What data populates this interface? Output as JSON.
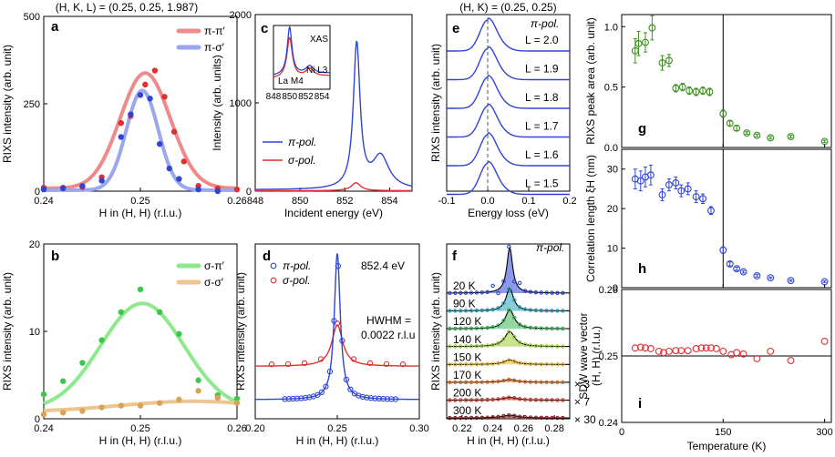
{
  "colors": {
    "pi_pi": "#f08a8a",
    "pi_sigma": "#9aa6ee",
    "sigma_pi": "#8ee98e",
    "sigma_sigma": "#eec58e",
    "red": "#e03030",
    "blue": "#2f45d6",
    "green": "#3a8f1d",
    "grey": "#888888"
  },
  "chart_data": [
    {
      "id": "a",
      "type": "scatter",
      "panel_label": "a",
      "title": "(H, K, L) = (0.25, 0.25, 1.987)",
      "xlabel": "H in (H, H) (r.l.u.)",
      "ylabel": "RIXS intensity (arb. unit)",
      "xlim": [
        0.24,
        0.26
      ],
      "ylim": [
        0,
        500
      ],
      "xticks": [
        "0.24",
        "0.25",
        "0.26"
      ],
      "yticks": [
        "0",
        "250",
        "500"
      ],
      "legend": [
        "π-π′",
        "π-σ′"
      ],
      "series": [
        {
          "name": "π-π′",
          "color": "pi_pi",
          "points": [
            [
              0.24,
              10
            ],
            [
              0.242,
              10
            ],
            [
              0.244,
              12
            ],
            [
              0.246,
              40
            ],
            [
              0.248,
              195
            ],
            [
              0.249,
              215
            ],
            [
              0.2505,
              305
            ],
            [
              0.2515,
              345
            ],
            [
              0.2525,
              270
            ],
            [
              0.2535,
              170
            ],
            [
              0.2545,
              85
            ],
            [
              0.256,
              15
            ],
            [
              0.258,
              8
            ],
            [
              0.26,
              5
            ]
          ],
          "fit": {
            "amp": 330,
            "center": 0.2505,
            "sigma": 0.0026,
            "base": 8
          }
        },
        {
          "name": "π-σ′",
          "color": "pi_sigma",
          "points": [
            [
              0.24,
              5
            ],
            [
              0.242,
              8
            ],
            [
              0.244,
              15
            ],
            [
              0.246,
              30
            ],
            [
              0.248,
              155
            ],
            [
              0.249,
              220
            ],
            [
              0.25,
              275
            ],
            [
              0.251,
              265
            ],
            [
              0.252,
              135
            ],
            [
              0.253,
              65
            ],
            [
              0.254,
              35
            ],
            [
              0.256,
              5
            ],
            [
              0.258,
              0
            ]
          ],
          "fit": {
            "amp": 285,
            "center": 0.2502,
            "sigma": 0.00165,
            "base": 3
          }
        }
      ]
    },
    {
      "id": "b",
      "type": "scatter",
      "panel_label": "b",
      "xlabel": "H in (H, H) (r.l.u.)",
      "ylabel": "RIXS intensity (arb. unit)",
      "xlim": [
        0.24,
        0.26
      ],
      "ylim": [
        0,
        20
      ],
      "xticks": [
        "0.24",
        "0.25",
        "0.26"
      ],
      "yticks": [
        "0",
        "10",
        "20"
      ],
      "legend": [
        "σ-π′",
        "σ-σ′"
      ],
      "series": [
        {
          "name": "σ-π′",
          "color": "sigma_pi",
          "points": [
            [
              0.24,
              2.8
            ],
            [
              0.242,
              4.3
            ],
            [
              0.244,
              6.4
            ],
            [
              0.246,
              9
            ],
            [
              0.248,
              12.2
            ],
            [
              0.25,
              14.8
            ],
            [
              0.252,
              12.2
            ],
            [
              0.254,
              9.7
            ],
            [
              0.256,
              4.4
            ],
            [
              0.258,
              2.7
            ],
            [
              0.26,
              2.3
            ]
          ],
          "fit": {
            "amp": 12.2,
            "center": 0.2502,
            "sigma": 0.0043,
            "base": 1
          }
        },
        {
          "name": "σ-σ′",
          "color": "sigma_sigma",
          "points": [
            [
              0.24,
              0.5
            ],
            [
              0.242,
              0.7
            ],
            [
              0.244,
              0.9
            ],
            [
              0.246,
              1.3
            ],
            [
              0.248,
              1.5
            ],
            [
              0.25,
              1.5
            ],
            [
              0.252,
              1.8
            ],
            [
              0.254,
              2.2
            ],
            [
              0.256,
              3.2
            ],
            [
              0.258,
              2.4
            ],
            [
              0.26,
              1.8
            ]
          ],
          "fit": {
            "amp": 1.2,
            "center": 0.2555,
            "sigma": 0.0075,
            "base": 0.8
          }
        }
      ]
    },
    {
      "id": "c",
      "type": "line",
      "panel_label": "c",
      "xlabel": "Incident energy (eV)",
      "ylabel": "Intensity (arb. units)",
      "xlim": [
        848,
        855
      ],
      "ylim": [
        0,
        2000
      ],
      "xticks": [
        "848",
        "850",
        "852",
        "854"
      ],
      "yticks": [
        "0",
        "1000",
        "2000"
      ],
      "legend": [
        "π-pol.",
        "σ-pol."
      ],
      "series": [
        {
          "name": "π-pol.",
          "color": "blue",
          "peaks": [
            [
              852.53,
              1630,
              0.18
            ],
            [
              853.6,
              370,
              0.45
            ]
          ],
          "base": 15
        },
        {
          "name": "σ-pol.",
          "color": "red",
          "peaks": [
            [
              852.5,
              90,
              0.25
            ]
          ],
          "base": 5
        }
      ],
      "inset": {
        "label": "XAS",
        "xlim": [
          848,
          855
        ],
        "xticks": [
          "848",
          "850",
          "852",
          "854"
        ],
        "annotations": [
          "La M4",
          "Ni L3"
        ]
      }
    },
    {
      "id": "d",
      "type": "scatter",
      "panel_label": "d",
      "xlabel": "H in (H, H) (r.l.u.)",
      "ylabel": "RIXS intensity (arb. unit)",
      "xlim": [
        0.2,
        0.3
      ],
      "xticks": [
        "0.20",
        "0.25",
        "0.30"
      ],
      "energy_label": "852.4 eV",
      "hwhm_label": [
        "HWHM =",
        "0.0022 r.l.u"
      ],
      "legend": [
        "π-pol.",
        "σ-pol."
      ],
      "series": [
        {
          "name": "π-pol.",
          "color": "blue",
          "hwhm": 0.0022,
          "center": 0.25
        },
        {
          "name": "σ-pol.",
          "color": "red",
          "hwhm": 0.004,
          "center": 0.25
        }
      ]
    },
    {
      "id": "e",
      "type": "line",
      "panel_label": "e",
      "title": "(H, K) = (0.25, 0.25)",
      "pol_label": "π-pol.",
      "xlabel": "Energy loss (eV)",
      "ylabel": "RIXS intensity (arb. unit)",
      "xlim": [
        -0.1,
        0.2
      ],
      "xticks": [
        "-0.1",
        "0.0",
        "0.1",
        "0.2"
      ],
      "series": [
        "L = 2.0",
        "L = 1.9",
        "L = 1.8",
        "L = 1.7",
        "L = 1.6",
        "L = 1.5"
      ]
    },
    {
      "id": "f",
      "type": "line",
      "panel_label": "f",
      "pol_label": "π-pol.",
      "xlabel": "H in (H, H) (r.l.u.)",
      "ylabel": "RIXS intensity (arb. unit)",
      "xlim": [
        0.21,
        0.29
      ],
      "xticks": [
        "0.22",
        "0.24",
        "0.26",
        "0.28"
      ],
      "series": [
        {
          "name": "20 K",
          "amp": 1.0,
          "fill": "#2f45d6"
        },
        {
          "name": "90 K",
          "amp": 0.5,
          "fill": "#2aa3b8"
        },
        {
          "name": "120 K",
          "amp": 0.42,
          "fill": "#3cb45a"
        },
        {
          "name": "140 K",
          "amp": 0.33,
          "fill": "#9ccc36"
        },
        {
          "name": "150 K",
          "amp": 0.1,
          "fill": "#e7b42a"
        },
        {
          "name": "170 K",
          "amp": 0.05,
          "fill": "#e07a2a"
        },
        {
          "name": "200 K",
          "amp": 0.04,
          "fill": "#d03c2a"
        },
        {
          "name": "300 K",
          "amp": 0.03,
          "fill": "#8a1a1a"
        }
      ],
      "multipliers": [
        "× 3",
        "× 7",
        "× 30"
      ]
    },
    {
      "id": "g",
      "type": "scatter",
      "panel_label": "g",
      "ylabel": "RIXS peak area (arb. unit)",
      "xlim": [
        0,
        310
      ],
      "ylim": [
        0,
        1.1
      ],
      "yticks": [
        "0.0",
        "0.5",
        "1.0"
      ],
      "vline": 150,
      "color": "green",
      "points": [
        [
          20,
          0.8,
          0.1
        ],
        [
          25,
          0.86,
          0.1
        ],
        [
          35,
          0.87,
          0.08
        ],
        [
          45,
          0.99,
          0.1
        ],
        [
          60,
          0.7,
          0.06
        ],
        [
          70,
          0.72,
          0.05
        ],
        [
          80,
          0.49,
          0.03
        ],
        [
          90,
          0.5,
          0.03
        ],
        [
          100,
          0.47,
          0.03
        ],
        [
          110,
          0.46,
          0.03
        ],
        [
          120,
          0.47,
          0.03
        ],
        [
          130,
          0.46,
          0.03
        ],
        [
          150,
          0.28,
          0.03
        ],
        [
          160,
          0.2,
          0.02
        ],
        [
          170,
          0.16,
          0.02
        ],
        [
          185,
          0.12,
          0.01
        ],
        [
          200,
          0.1,
          0.01
        ],
        [
          220,
          0.08,
          0.01
        ],
        [
          250,
          0.09,
          0.01
        ],
        [
          300,
          0.05,
          0.01
        ]
      ]
    },
    {
      "id": "h",
      "type": "scatter",
      "panel_label": "h",
      "ylabel": "Correlation length ξH (nm)",
      "xlim": [
        0,
        310
      ],
      "ylim": [
        0,
        35
      ],
      "yticks": [
        "0",
        "10",
        "20",
        "30"
      ],
      "vline": 150,
      "color": "blue",
      "points": [
        [
          20,
          27.5,
          2.5
        ],
        [
          28,
          27,
          2.5
        ],
        [
          35,
          28,
          2.5
        ],
        [
          43,
          28.5,
          2.5
        ],
        [
          60,
          23.5,
          1.5
        ],
        [
          70,
          26,
          1.5
        ],
        [
          80,
          26.5,
          1.5
        ],
        [
          88,
          24.5,
          1.5
        ],
        [
          98,
          25,
          1.5
        ],
        [
          110,
          23,
          1.5
        ],
        [
          120,
          22.5,
          1.2
        ],
        [
          132,
          19.5,
          1
        ],
        [
          150,
          9.5,
          0.8
        ],
        [
          160,
          6,
          0.5
        ],
        [
          170,
          4.8,
          0.4
        ],
        [
          180,
          4,
          0.3
        ],
        [
          200,
          3,
          0.3
        ],
        [
          220,
          2.5,
          0.2
        ],
        [
          250,
          1.8,
          0.2
        ],
        [
          300,
          1.5,
          0.2
        ]
      ]
    },
    {
      "id": "i",
      "type": "scatter",
      "panel_label": "i",
      "ylabel": "SDW wave vector (H, H) (r.l.u.)",
      "xlabel": "Temperature (K)",
      "xlim": [
        0,
        310
      ],
      "ylim": [
        0.24,
        0.26
      ],
      "xticks": [
        "0",
        "150",
        "300"
      ],
      "yticks": [
        "0.24",
        "0.25",
        "0.26"
      ],
      "hline": 0.25,
      "color": "red",
      "points": [
        [
          20,
          0.2512
        ],
        [
          28,
          0.2513
        ],
        [
          35,
          0.2512
        ],
        [
          43,
          0.2511
        ],
        [
          55,
          0.2507
        ],
        [
          62,
          0.2505
        ],
        [
          70,
          0.2507
        ],
        [
          80,
          0.2508
        ],
        [
          88,
          0.2508
        ],
        [
          98,
          0.2508
        ],
        [
          110,
          0.2511
        ],
        [
          118,
          0.2512
        ],
        [
          125,
          0.2512
        ],
        [
          132,
          0.2512
        ],
        [
          140,
          0.2511
        ],
        [
          150,
          0.2507
        ],
        [
          162,
          0.2502
        ],
        [
          170,
          0.2505
        ],
        [
          180,
          0.2503
        ],
        [
          200,
          0.2496
        ],
        [
          220,
          0.2507
        ],
        [
          250,
          0.2493
        ],
        [
          300,
          0.2522
        ]
      ]
    }
  ]
}
